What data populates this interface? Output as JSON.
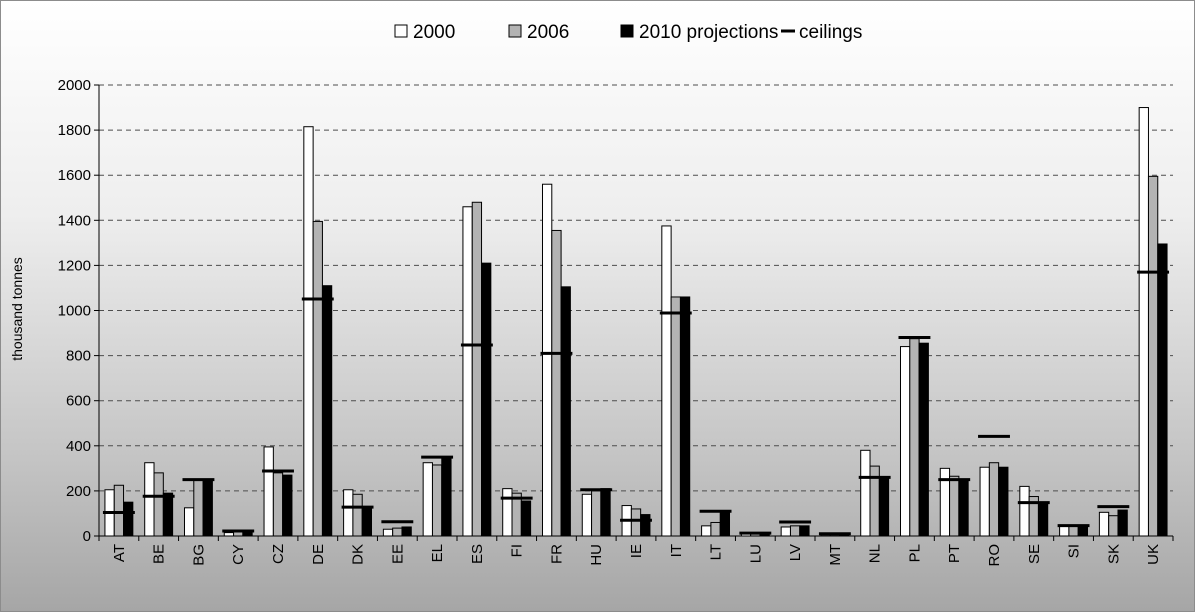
{
  "chart_data": {
    "type": "bar",
    "title": "",
    "xlabel": "",
    "ylabel": "thousand tonnes",
    "ylim": [
      0,
      2000
    ],
    "yticks": [
      0,
      200,
      400,
      600,
      800,
      1000,
      1200,
      1400,
      1600,
      1800,
      2000
    ],
    "grid": true,
    "legend_position": "top",
    "categories": [
      "AT",
      "BE",
      "BG",
      "CY",
      "CZ",
      "DE",
      "DK",
      "EE",
      "EL",
      "ES",
      "FI",
      "FR",
      "HU",
      "IE",
      "IT",
      "LT",
      "LU",
      "LV",
      "MT",
      "NL",
      "PL",
      "PT",
      "RO",
      "SE",
      "SI",
      "SK",
      "UK"
    ],
    "series": [
      {
        "name": "2000",
        "color": "#ffffff",
        "values": [
          205,
          325,
          125,
          15,
          395,
          1815,
          205,
          30,
          325,
          1460,
          210,
          1560,
          185,
          135,
          1375,
          45,
          10,
          40,
          5,
          380,
          840,
          300,
          305,
          220,
          45,
          105,
          1900
        ]
      },
      {
        "name": "2006",
        "color": "#b3b3b3",
        "values": [
          225,
          280,
          250,
          20,
          280,
          1395,
          185,
          35,
          315,
          1480,
          190,
          1355,
          200,
          120,
          1060,
          60,
          10,
          45,
          5,
          310,
          875,
          265,
          325,
          175,
          45,
          90,
          1595
        ]
      },
      {
        "name": "2010 projections",
        "color": "#000000",
        "values": [
          150,
          190,
          250,
          20,
          270,
          1110,
          130,
          40,
          350,
          1210,
          155,
          1105,
          210,
          95,
          1060,
          105,
          10,
          45,
          5,
          260,
          855,
          245,
          305,
          150,
          45,
          115,
          1295
        ]
      }
    ],
    "ceilings": {
      "name": "ceilings",
      "values": [
        104,
        176,
        250,
        22,
        288,
        1051,
        128,
        63,
        350,
        847,
        168,
        810,
        205,
        70,
        989,
        110,
        13,
        62,
        10,
        260,
        880,
        250,
        442,
        148,
        46,
        130,
        1170
      ]
    }
  },
  "legend": [
    {
      "label": "2000",
      "marker": "white-square-icon"
    },
    {
      "label": "2006",
      "marker": "gray-square-icon"
    },
    {
      "label": "2010 projections",
      "marker": "black-square-icon"
    },
    {
      "label": "ceilings",
      "marker": "dash-line-icon"
    }
  ]
}
